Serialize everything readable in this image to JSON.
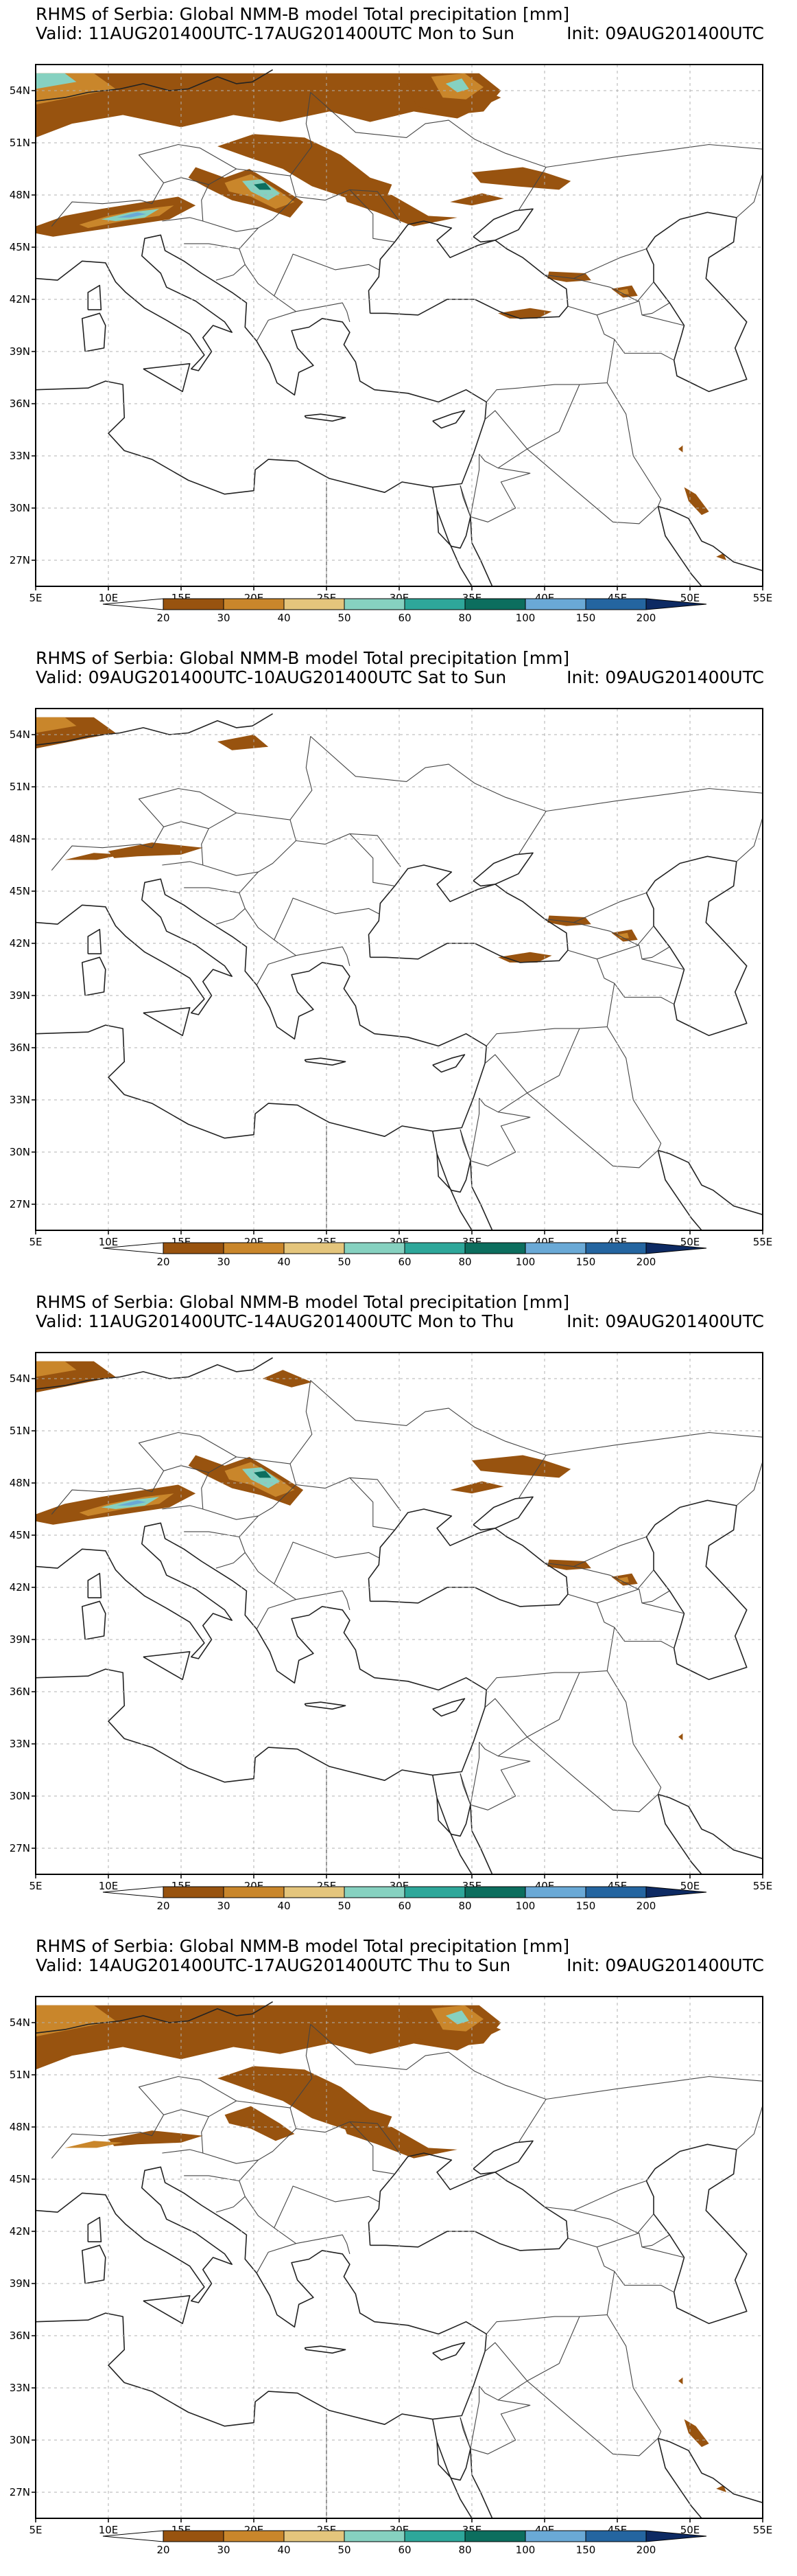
{
  "legend": {
    "colors": [
      "#ffffff",
      "#98530f",
      "#c9862b",
      "#e4c57c",
      "#86d1c0",
      "#2ea79a",
      "#0c6e5e",
      "#6aa9d6",
      "#2465a0",
      "#0d2a63"
    ],
    "labels": [
      "20",
      "30",
      "40",
      "50",
      "60",
      "80",
      "100",
      "150",
      "200"
    ]
  },
  "axes": {
    "lon_labels": [
      "5E",
      "10E",
      "15E",
      "20E",
      "25E",
      "30E",
      "35E",
      "40E",
      "45E",
      "50E",
      "55E"
    ],
    "lat_labels": [
      "54N",
      "51N",
      "48N",
      "45N",
      "42N",
      "39N",
      "36N",
      "33N",
      "30N",
      "27N"
    ]
  },
  "panels": [
    {
      "title": "RHMS of Serbia: Global NMM-B model Total precipitation [mm]",
      "valid": "Valid: 11AUG201400UTC-17AUG201400UTC Mon to Sun",
      "init": "Init: 09AUG201400UTC"
    },
    {
      "title": "RHMS of Serbia: Global NMM-B model Total precipitation [mm]",
      "valid": "Valid: 09AUG201400UTC-10AUG201400UTC Sat to Sun",
      "init": "Init: 09AUG201400UTC"
    },
    {
      "title": "RHMS of Serbia: Global NMM-B model Total precipitation [mm]",
      "valid": "Valid: 11AUG201400UTC-14AUG201400UTC Mon to Thu",
      "init": "Init: 09AUG201400UTC"
    },
    {
      "title": "RHMS of Serbia: Global NMM-B model Total precipitation [mm]",
      "valid": "Valid: 14AUG201400UTC-17AUG201400UTC Thu to Sun",
      "init": "Init: 09AUG201400UTC"
    }
  ]
}
